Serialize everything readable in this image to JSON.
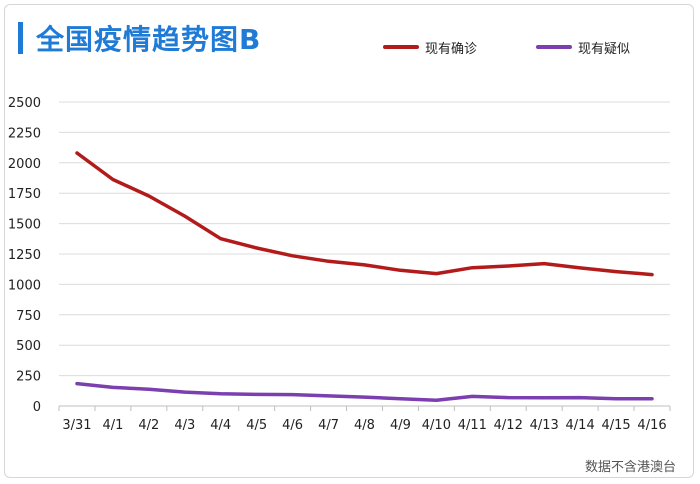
{
  "chart_data": {
    "type": "line",
    "title": "全国疫情趋势图B",
    "categories": [
      "3/31",
      "4/1",
      "4/2",
      "4/3",
      "4/4",
      "4/5",
      "4/6",
      "4/7",
      "4/8",
      "4/9",
      "4/10",
      "4/11",
      "4/12",
      "4/13",
      "4/14",
      "4/15",
      "4/16"
    ],
    "series": [
      {
        "name": "现有确诊",
        "color": "#b31b1b",
        "values": [
          2081,
          1863,
          1727,
          1562,
          1376,
          1299,
          1235,
          1190,
          1160,
          1116,
          1089,
          1137,
          1151,
          1171,
          1136,
          1105,
          1081
        ]
      },
      {
        "name": "现有疑似",
        "color": "#7b3fb0",
        "values": [
          184,
          153,
          138,
          114,
          101,
          95,
          94,
          83,
          73,
          59,
          48,
          79,
          69,
          68,
          69,
          60,
          59
        ]
      }
    ],
    "ylim": [
      0,
      2500
    ],
    "yticks": [
      0,
      250,
      500,
      750,
      1000,
      1250,
      1500,
      1750,
      2000,
      2250,
      2500
    ],
    "grid": true,
    "legend": "top-right",
    "source_note": "数据不含港澳台"
  }
}
